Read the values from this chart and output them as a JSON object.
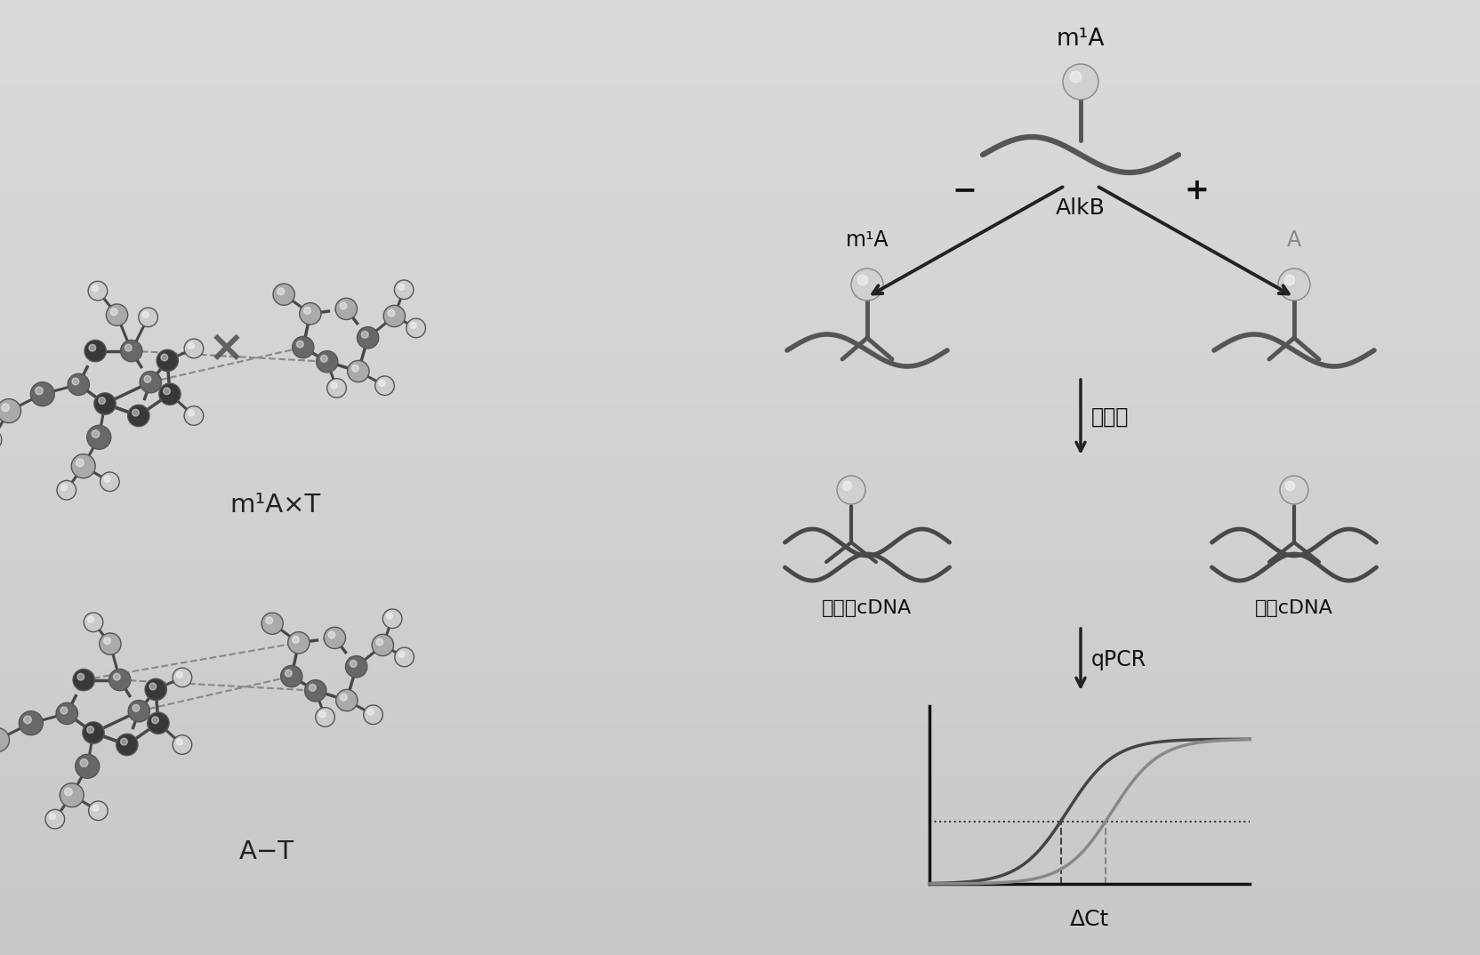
{
  "bg_color": "#c8c8c8",
  "dark": "#383838",
  "mid": "#686868",
  "light": "#aaaaaa",
  "vlight": "#cccccc",
  "bond_color": "#484848",
  "dna_color": "#555555",
  "dna_dark": "#444444",
  "m1A_label": "m¹A",
  "A_label": "A",
  "AlkB_label": "AlkB",
  "minus_label": "−",
  "plus_label": "+",
  "reverse_transcription_label": "逆转录",
  "truncated_cDNA_label": "截短的cDNA",
  "full_cDNA_label": "全长cDNA",
  "qPCR_label": "qPCR",
  "delta_ct_label": "ΔCt",
  "m1A_x_T_label": "m¹A×T",
  "A_T_label": "A−T"
}
